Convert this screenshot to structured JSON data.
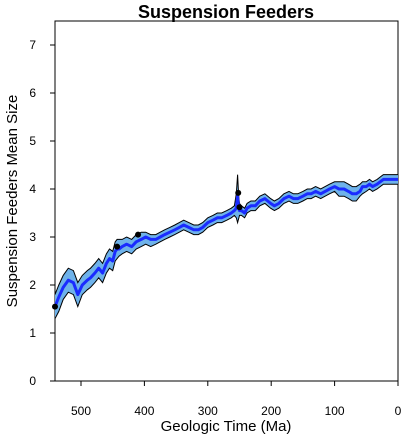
{
  "chart_data": {
    "type": "line",
    "title": "Suspension Feeders",
    "xlabel": "Geologic Time (Ma)",
    "ylabel": "Suspension Feeders Mean Size",
    "xlim": [
      541,
      0
    ],
    "ylim": [
      0,
      7.5
    ],
    "x_ticks": [
      500,
      400,
      300,
      200,
      100,
      0
    ],
    "y_ticks": [
      0,
      1,
      2,
      3,
      4,
      5,
      6,
      7
    ],
    "grid": false,
    "colors": {
      "band": "#6eb2ea",
      "line": "#1a2cff",
      "envelope": "#000000",
      "point": "#000000"
    },
    "series": [
      {
        "x": [
          541,
          535,
          528,
          520,
          512,
          505,
          498,
          490,
          485,
          478,
          472,
          466,
          460,
          455,
          450,
          446,
          443,
          440,
          435,
          428,
          420,
          413,
          405,
          398,
          390,
          382,
          375,
          368,
          360,
          352,
          345,
          338,
          330,
          322,
          315,
          308,
          300,
          292,
          285,
          278,
          270,
          263,
          258,
          255,
          253,
          252,
          251,
          250,
          247,
          242,
          238,
          232,
          225,
          218,
          210,
          201,
          195,
          188,
          180,
          172,
          165,
          158,
          150,
          143,
          137,
          130,
          122,
          115,
          108,
          100,
          93,
          85,
          78,
          72,
          66,
          60,
          56,
          50,
          45,
          40,
          33,
          28,
          23,
          15,
          10,
          5,
          0
        ],
        "values": [
          1.55,
          1.75,
          1.95,
          2.1,
          2.05,
          1.8,
          2.0,
          2.1,
          2.15,
          2.25,
          2.35,
          2.25,
          2.45,
          2.55,
          2.5,
          2.7,
          2.75,
          2.75,
          2.8,
          2.85,
          2.8,
          2.9,
          2.95,
          3.0,
          2.95,
          2.95,
          3.0,
          3.05,
          3.1,
          3.15,
          3.2,
          3.25,
          3.2,
          3.15,
          3.15,
          3.2,
          3.3,
          3.35,
          3.4,
          3.4,
          3.45,
          3.5,
          3.55,
          3.6,
          3.85,
          3.7,
          3.6,
          3.55,
          3.55,
          3.5,
          3.6,
          3.65,
          3.65,
          3.75,
          3.8,
          3.7,
          3.65,
          3.7,
          3.8,
          3.85,
          3.8,
          3.8,
          3.85,
          3.9,
          3.9,
          3.95,
          3.9,
          3.95,
          4.0,
          4.05,
          4.0,
          4.0,
          3.95,
          3.9,
          3.9,
          3.95,
          4.05,
          4.05,
          4.1,
          4.05,
          4.1,
          4.15,
          4.2,
          4.2,
          4.2,
          4.2,
          4.2
        ],
        "lower": [
          1.3,
          1.45,
          1.7,
          1.85,
          1.8,
          1.55,
          1.8,
          1.9,
          1.95,
          2.05,
          2.15,
          2.05,
          2.25,
          2.35,
          2.3,
          2.5,
          2.55,
          2.6,
          2.65,
          2.7,
          2.65,
          2.75,
          2.8,
          2.85,
          2.8,
          2.85,
          2.9,
          2.95,
          3.0,
          3.05,
          3.1,
          3.15,
          3.1,
          3.05,
          3.05,
          3.1,
          3.2,
          3.25,
          3.3,
          3.3,
          3.35,
          3.4,
          3.45,
          3.4,
          3.3,
          3.35,
          3.4,
          3.45,
          3.45,
          3.4,
          3.5,
          3.55,
          3.55,
          3.65,
          3.7,
          3.6,
          3.55,
          3.6,
          3.7,
          3.75,
          3.7,
          3.7,
          3.75,
          3.8,
          3.8,
          3.85,
          3.8,
          3.85,
          3.9,
          3.95,
          3.85,
          3.85,
          3.8,
          3.75,
          3.75,
          3.85,
          3.9,
          3.95,
          4.0,
          3.95,
          4.0,
          4.05,
          4.1,
          4.1,
          4.1,
          4.1,
          4.1
        ],
        "upper": [
          1.8,
          2.0,
          2.2,
          2.35,
          2.3,
          2.05,
          2.2,
          2.3,
          2.35,
          2.45,
          2.55,
          2.45,
          2.65,
          2.75,
          2.7,
          2.9,
          2.95,
          2.95,
          2.95,
          3.0,
          2.95,
          3.05,
          3.1,
          3.1,
          3.05,
          3.05,
          3.1,
          3.15,
          3.2,
          3.25,
          3.3,
          3.35,
          3.3,
          3.25,
          3.25,
          3.3,
          3.4,
          3.45,
          3.5,
          3.5,
          3.55,
          3.6,
          3.65,
          3.9,
          4.3,
          4.05,
          3.8,
          3.7,
          3.65,
          3.6,
          3.7,
          3.75,
          3.75,
          3.85,
          3.9,
          3.8,
          3.75,
          3.8,
          3.9,
          3.95,
          3.9,
          3.9,
          3.95,
          4.0,
          4.0,
          4.05,
          4.0,
          4.05,
          4.1,
          4.15,
          4.15,
          4.15,
          4.1,
          4.05,
          4.05,
          4.1,
          4.15,
          4.15,
          4.2,
          4.15,
          4.2,
          4.25,
          4.3,
          4.3,
          4.3,
          4.3,
          4.3
        ]
      }
    ],
    "points": [
      {
        "x": 541,
        "y": 1.55
      },
      {
        "x": 443,
        "y": 2.8
      },
      {
        "x": 410,
        "y": 3.05
      },
      {
        "x": 252,
        "y": 3.92
      },
      {
        "x": 250,
        "y": 3.62
      }
    ]
  }
}
